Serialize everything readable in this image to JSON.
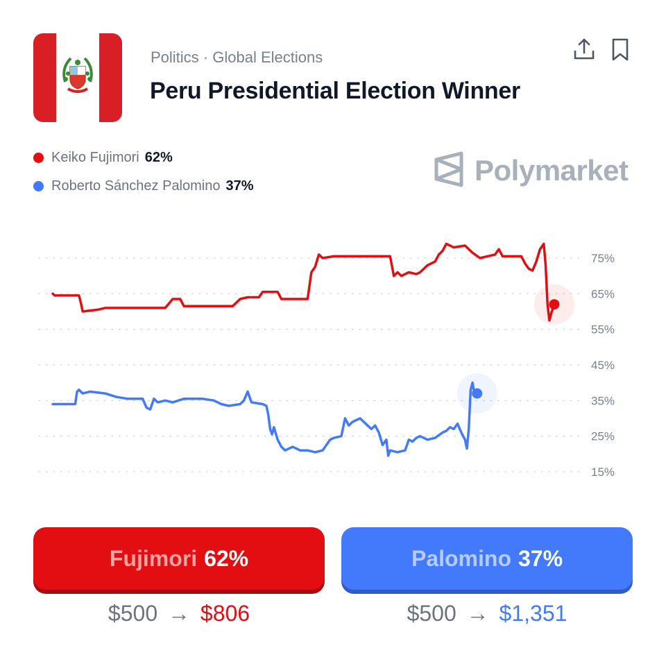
{
  "header": {
    "category": "Politics · Global Elections",
    "title": "Peru Presidential Election Winner",
    "flag_icon": "peru-flag-icon",
    "actions": [
      {
        "icon": "share-icon"
      },
      {
        "icon": "bookmark-icon"
      }
    ]
  },
  "brand": {
    "name": "Polymarket",
    "logo_icon": "polymarket-logo-icon"
  },
  "legend": [
    {
      "name": "Keiko Fujimori",
      "pct": "62%",
      "color": "#e20e12"
    },
    {
      "name": "Roberto Sánchez Palomino",
      "pct": "37%",
      "color": "#4379fb"
    }
  ],
  "chart_data": {
    "type": "line",
    "y_ticks": [
      "75%",
      "65%",
      "55%",
      "45%",
      "35%",
      "25%",
      "15%"
    ],
    "ylim": [
      15,
      75
    ],
    "grid": true,
    "series": [
      {
        "name": "Keiko Fujimori",
        "color": "#e20e12",
        "current": 62,
        "points": [
          [
            0,
            65
          ],
          [
            0.5,
            64.5
          ],
          [
            7,
            64.5
          ],
          [
            7.5,
            62.5
          ],
          [
            8,
            60
          ],
          [
            12,
            60.5
          ],
          [
            14,
            61
          ],
          [
            30,
            61
          ],
          [
            32,
            63.5
          ],
          [
            34,
            63.5
          ],
          [
            35,
            61.5
          ],
          [
            48,
            61.5
          ],
          [
            50,
            63.5
          ],
          [
            52,
            64
          ],
          [
            55,
            64
          ],
          [
            56,
            65.5
          ],
          [
            60,
            65.5
          ],
          [
            61,
            63.5
          ],
          [
            68,
            63.5
          ],
          [
            69,
            71
          ],
          [
            70,
            72.5
          ],
          [
            71,
            76
          ],
          [
            72,
            75
          ],
          [
            75,
            75.5
          ],
          [
            89,
            75.5
          ],
          [
            90,
            75.5
          ],
          [
            91,
            70
          ],
          [
            92,
            71
          ],
          [
            93,
            70
          ],
          [
            95,
            71
          ],
          [
            97,
            70.5
          ],
          [
            98,
            71
          ],
          [
            100,
            73
          ],
          [
            102,
            74
          ],
          [
            103,
            76
          ],
          [
            104,
            77
          ],
          [
            105,
            79
          ],
          [
            106,
            78.5
          ],
          [
            107,
            78
          ],
          [
            110,
            78.5
          ],
          [
            112,
            76.5
          ],
          [
            114,
            75
          ],
          [
            116,
            75.5
          ],
          [
            118,
            76
          ],
          [
            119,
            77.5
          ],
          [
            120,
            75.5
          ],
          [
            125,
            75.5
          ],
          [
            126,
            73.5
          ],
          [
            127,
            72
          ],
          [
            128,
            71.5
          ],
          [
            129,
            74
          ],
          [
            130,
            77.5
          ],
          [
            131,
            79
          ],
          [
            131.5,
            73
          ],
          [
            132,
            62
          ],
          [
            132.5,
            57.5
          ],
          [
            133,
            59.5
          ],
          [
            133.8,
            62
          ]
        ]
      },
      {
        "name": "Roberto Sánchez Palomino",
        "color": "#4379fb",
        "current": 37,
        "points": [
          [
            0,
            34
          ],
          [
            6,
            34
          ],
          [
            6.5,
            37.5
          ],
          [
            7,
            38
          ],
          [
            8,
            37
          ],
          [
            10,
            37.5
          ],
          [
            14,
            37
          ],
          [
            17,
            36
          ],
          [
            20,
            35.5
          ],
          [
            24,
            35.5
          ],
          [
            25,
            33
          ],
          [
            26,
            32.5
          ],
          [
            27,
            35.5
          ],
          [
            28,
            34.5
          ],
          [
            30,
            35
          ],
          [
            32,
            34.5
          ],
          [
            35,
            35.5
          ],
          [
            40,
            35.5
          ],
          [
            43,
            35
          ],
          [
            45,
            34
          ],
          [
            47,
            33.5
          ],
          [
            50,
            34
          ],
          [
            51,
            35
          ],
          [
            52,
            37.5
          ],
          [
            53,
            34.5
          ],
          [
            56,
            34
          ],
          [
            57,
            33.5
          ],
          [
            57.5,
            31
          ],
          [
            58,
            27
          ],
          [
            58.5,
            25.5
          ],
          [
            59,
            27.5
          ],
          [
            60,
            24
          ],
          [
            61,
            22
          ],
          [
            62,
            21
          ],
          [
            64,
            22
          ],
          [
            66,
            21
          ],
          [
            68,
            21
          ],
          [
            70,
            20.5
          ],
          [
            72,
            21
          ],
          [
            73,
            22.5
          ],
          [
            74,
            24
          ],
          [
            75,
            24.5
          ],
          [
            77,
            25
          ],
          [
            77.5,
            27.5
          ],
          [
            78,
            30
          ],
          [
            79,
            28
          ],
          [
            80,
            29
          ],
          [
            82,
            30
          ],
          [
            84,
            28
          ],
          [
            85,
            27
          ],
          [
            86,
            28
          ],
          [
            87,
            26
          ],
          [
            88,
            22.5
          ],
          [
            89,
            24
          ],
          [
            89.5,
            19.5
          ],
          [
            90,
            21
          ],
          [
            92,
            20.5
          ],
          [
            94,
            21
          ],
          [
            95,
            24
          ],
          [
            96,
            23.5
          ],
          [
            97,
            24.5
          ],
          [
            98,
            25
          ],
          [
            100,
            24
          ],
          [
            102,
            24.5
          ],
          [
            104,
            26
          ],
          [
            105,
            26.5
          ],
          [
            106,
            27.5
          ],
          [
            107,
            27
          ],
          [
            108,
            28.5
          ],
          [
            109,
            26
          ],
          [
            110,
            24
          ],
          [
            110.5,
            21.5
          ],
          [
            111,
            27
          ],
          [
            111.5,
            38
          ],
          [
            112,
            40
          ],
          [
            112.5,
            37
          ],
          [
            113.2,
            37
          ]
        ]
      }
    ]
  },
  "bets": [
    {
      "name": "Fujimori",
      "pct": "62%",
      "stake": "$500",
      "arrow": "→",
      "payout": "$806",
      "color": "#e20e12"
    },
    {
      "name": "Palomino",
      "pct": "37%",
      "stake": "$500",
      "arrow": "→",
      "payout": "$1,351",
      "color": "#4379fb"
    }
  ]
}
